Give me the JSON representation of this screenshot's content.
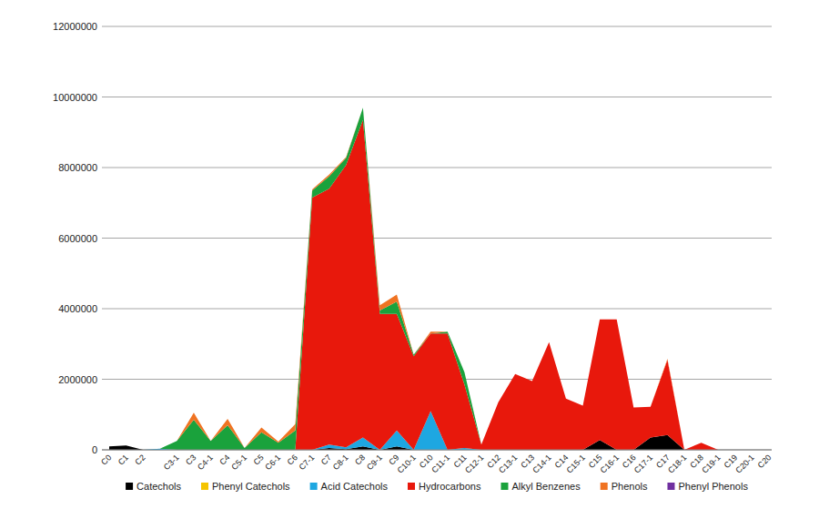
{
  "chart_data": {
    "type": "area",
    "stacked": true,
    "grid": true,
    "legend": "bottom",
    "categories": [
      "C0",
      "C1",
      "C2",
      null,
      "C3-1",
      "C3",
      "C4-1",
      "C4",
      "C5-1",
      "C5",
      "C6-1",
      "C6",
      "C7-1",
      "C7",
      "C8-1",
      "C8",
      "C9-1",
      "C9",
      "C10-1",
      "C10",
      "C11-1",
      "C11",
      "C12-1",
      "C12",
      "C13-1",
      "C13",
      "C14-1",
      "C14",
      "C15-1",
      "C15",
      "C16-1",
      "C16",
      "C17-1",
      "C17",
      "C18-1",
      "C18",
      "C19-1",
      "C19",
      "C20-1",
      "C20"
    ],
    "ylim": [
      0,
      12000000
    ],
    "yticks": [
      0,
      2000000,
      4000000,
      6000000,
      8000000,
      10000000,
      12000000
    ],
    "series": [
      {
        "name": "Catechols",
        "color": "#000000",
        "values": [
          100000,
          120000,
          0,
          0,
          0,
          0,
          0,
          0,
          0,
          0,
          0,
          0,
          0,
          50000,
          20000,
          100000,
          0,
          100000,
          0,
          0,
          0,
          0,
          0,
          0,
          0,
          0,
          0,
          0,
          0,
          280000,
          0,
          0,
          350000,
          420000,
          0,
          0,
          0,
          0,
          0,
          0
        ]
      },
      {
        "name": "Phenyl Catechols",
        "color": "#f5c400",
        "values": [
          0,
          0,
          0,
          0,
          0,
          0,
          0,
          0,
          0,
          0,
          0,
          0,
          0,
          0,
          0,
          0,
          0,
          0,
          0,
          0,
          0,
          0,
          0,
          0,
          0,
          0,
          0,
          0,
          0,
          0,
          0,
          0,
          0,
          0,
          0,
          0,
          0,
          0,
          0,
          0
        ]
      },
      {
        "name": "Acid Catechols",
        "color": "#1ea7e1",
        "values": [
          0,
          0,
          0,
          30000,
          0,
          0,
          0,
          0,
          0,
          0,
          0,
          0,
          0,
          100000,
          50000,
          250000,
          0,
          450000,
          0,
          1100000,
          0,
          50000,
          0,
          0,
          0,
          0,
          0,
          0,
          0,
          0,
          0,
          0,
          0,
          0,
          0,
          0,
          0,
          0,
          0,
          0
        ]
      },
      {
        "name": "Hydrocarbons",
        "color": "#e8180c",
        "values": [
          0,
          0,
          0,
          0,
          0,
          0,
          0,
          0,
          0,
          0,
          0,
          0,
          7150000,
          7250000,
          8000000,
          9000000,
          3850000,
          3300000,
          2650000,
          2200000,
          3300000,
          1800000,
          150000,
          1350000,
          2150000,
          1950000,
          3050000,
          1450000,
          1250000,
          3420000,
          3700000,
          1200000,
          870000,
          2130000,
          0,
          200000,
          0,
          0,
          0,
          0
        ]
      },
      {
        "name": "Alkyl Benzenes",
        "color": "#1aa23c",
        "values": [
          0,
          0,
          0,
          0,
          250000,
          850000,
          250000,
          700000,
          50000,
          500000,
          200000,
          550000,
          200000,
          350000,
          200000,
          350000,
          100000,
          350000,
          50000,
          0,
          50000,
          350000,
          0,
          0,
          0,
          0,
          0,
          0,
          0,
          0,
          0,
          0,
          0,
          0,
          0,
          0,
          0,
          0,
          0,
          0
        ]
      },
      {
        "name": "Phenols",
        "color": "#f07322",
        "values": [
          0,
          0,
          0,
          0,
          0,
          200000,
          0,
          180000,
          0,
          130000,
          30000,
          180000,
          30000,
          50000,
          30000,
          0,
          150000,
          200000,
          0,
          50000,
          0,
          0,
          0,
          0,
          0,
          0,
          0,
          0,
          0,
          0,
          0,
          0,
          0,
          30000,
          0,
          0,
          0,
          0,
          0,
          0
        ]
      },
      {
        "name": "Phenyl Phenols",
        "color": "#7030a0",
        "values": [
          0,
          0,
          0,
          0,
          0,
          0,
          0,
          0,
          0,
          0,
          0,
          0,
          0,
          0,
          0,
          0,
          0,
          0,
          0,
          0,
          0,
          0,
          0,
          0,
          0,
          0,
          0,
          0,
          0,
          0,
          0,
          0,
          0,
          0,
          0,
          0,
          0,
          0,
          0,
          0
        ]
      }
    ]
  }
}
